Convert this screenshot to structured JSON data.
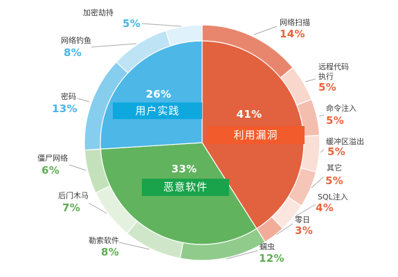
{
  "chart_data": {
    "type": "pie",
    "slices": [
      {
        "name": "利用漏洞",
        "value": 41,
        "label": "41%",
        "color": "#E2613F",
        "tag_color": "#F25B2B",
        "text_color": "#E8653E",
        "children": [
          {
            "name": "网络扫描",
            "value": 14,
            "label": "14%",
            "color": "#E8866D"
          },
          {
            "name": "远程代码执行",
            "value": 5,
            "label": "5%",
            "color": "#F8D7CC"
          },
          {
            "name": "命令注入",
            "value": 5,
            "label": "5%",
            "color": "#F4BEAF"
          },
          {
            "name": "缓冲区溢出",
            "value": 5,
            "label": "5%",
            "color": "#FADFD6"
          },
          {
            "name": "其它",
            "value": 5,
            "label": "5%",
            "color": "#F5C5B7"
          },
          {
            "name": "SQL注入",
            "value": 4,
            "label": "4%",
            "color": "#FBE6DF"
          },
          {
            "name": "零日",
            "value": 3,
            "label": "3%",
            "color": "#F1AD9A"
          }
        ]
      },
      {
        "name": "恶意软件",
        "value": 33,
        "label": "33%",
        "color": "#61B35E",
        "tag_color": "#1AA34B",
        "text_color": "#5FAD52",
        "children": [
          {
            "name": "蠕虫",
            "value": 12,
            "label": "12%",
            "color": "#91CB8C"
          },
          {
            "name": "勒索软件",
            "value": 8,
            "label": "8%",
            "color": "#CFE7C8"
          },
          {
            "name": "后门木马",
            "value": 7,
            "label": "7%",
            "color": "#E4F1DF"
          },
          {
            "name": "僵尸网络",
            "value": 6,
            "label": "6%",
            "color": "#C3E1BA"
          }
        ]
      },
      {
        "name": "用户实践",
        "value": 26,
        "label": "26%",
        "color": "#4DB7E7",
        "tag_color": "#0EA8DF",
        "text_color": "#48B5E6",
        "children": [
          {
            "name": "密码",
            "value": 13,
            "label": "13%",
            "color": "#86CDEE"
          },
          {
            "name": "网络钓鱼",
            "value": 8,
            "label": "8%",
            "color": "#BDE3F5"
          },
          {
            "name": "加密劫持",
            "value": 5,
            "label": "5%",
            "color": "#DFF1FA"
          }
        ]
      }
    ]
  }
}
